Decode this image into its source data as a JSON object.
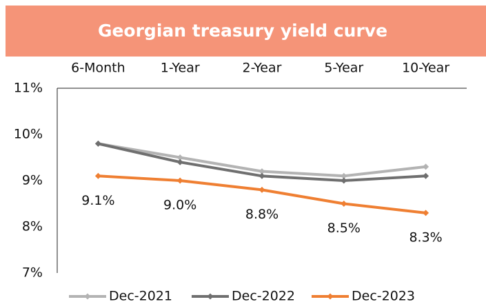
{
  "chart_data": {
    "type": "line",
    "title": "Georgian treasury yield curve",
    "categories": [
      "6-Month",
      "1-Year",
      "2-Year",
      "5-Year",
      "10-Year"
    ],
    "series": [
      {
        "name": "Dec-2021",
        "color": "#b3b3b3",
        "values": [
          9.8,
          9.5,
          9.2,
          9.1,
          9.3
        ]
      },
      {
        "name": "Dec-2022",
        "color": "#6f6f6f",
        "values": [
          9.8,
          9.4,
          9.1,
          9.0,
          9.1
        ]
      },
      {
        "name": "Dec-2023",
        "color": "#ef7f32",
        "values": [
          9.1,
          9.0,
          8.8,
          8.5,
          8.3
        ],
        "value_labels": [
          "9.1%",
          "9.0%",
          "8.8%",
          "8.5%",
          "8.3%"
        ]
      }
    ],
    "ylim": [
      7,
      11
    ],
    "yticks": [
      {
        "value": 7,
        "label": "7%"
      },
      {
        "value": 8,
        "label": "8%"
      },
      {
        "value": 9,
        "label": "9%"
      },
      {
        "value": 10,
        "label": "10%"
      },
      {
        "value": 11,
        "label": "11%"
      }
    ],
    "grid": false,
    "legend": "bottom"
  }
}
